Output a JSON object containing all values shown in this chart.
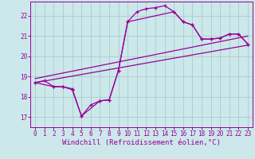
{
  "title": "",
  "xlabel": "Windchill (Refroidissement éolien,°C)",
  "bg_color": "#cce8ea",
  "line_color": "#990099",
  "grid_color": "#aacccc",
  "spine_color": "#990099",
  "xlim": [
    -0.5,
    23.5
  ],
  "ylim": [
    16.5,
    22.7
  ],
  "xticks": [
    0,
    1,
    2,
    3,
    4,
    5,
    6,
    7,
    8,
    9,
    10,
    11,
    12,
    13,
    14,
    15,
    16,
    17,
    18,
    19,
    20,
    21,
    22,
    23
  ],
  "yticks": [
    17,
    18,
    19,
    20,
    21,
    22
  ],
  "series": [
    {
      "x": [
        0,
        1,
        2,
        3,
        4,
        5,
        6,
        7,
        8,
        9,
        10,
        11,
        12,
        13,
        14,
        15,
        16,
        17,
        18,
        19,
        20,
        21,
        22,
        23
      ],
      "y": [
        18.7,
        18.8,
        18.5,
        18.5,
        18.4,
        17.05,
        17.6,
        17.8,
        17.85,
        19.3,
        21.7,
        22.2,
        22.35,
        22.4,
        22.5,
        22.2,
        21.7,
        21.55,
        20.85,
        20.85,
        20.9,
        21.1,
        21.1,
        20.6
      ],
      "markers": true
    },
    {
      "x": [
        0,
        2,
        3,
        4,
        5,
        7,
        8,
        9,
        10,
        15,
        16,
        17,
        18,
        19,
        20,
        21,
        22,
        23
      ],
      "y": [
        18.7,
        18.5,
        18.5,
        18.35,
        17.05,
        17.8,
        17.85,
        19.3,
        21.7,
        22.2,
        21.7,
        21.55,
        20.85,
        20.85,
        20.9,
        21.1,
        21.1,
        20.6
      ],
      "markers": true
    },
    {
      "x": [
        0,
        23
      ],
      "y": [
        18.9,
        21.0
      ],
      "markers": false
    },
    {
      "x": [
        0,
        23
      ],
      "y": [
        18.7,
        20.55
      ],
      "markers": false
    }
  ],
  "title_color": "#990099",
  "tick_color": "#990099",
  "xlabel_color": "#990099",
  "title_fontsize": 6,
  "xlabel_fontsize": 6.5,
  "tick_fontsize": 5.5,
  "linewidth": 0.9,
  "markersize": 3.5,
  "markeredgewidth": 0.9
}
